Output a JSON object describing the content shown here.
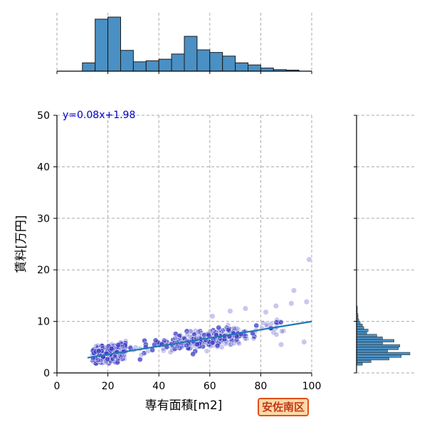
{
  "chart_data": {
    "type": "scatter",
    "xlabel": "専有面積[m2]",
    "ylabel": "賃料[万円]",
    "xlim": [
      0,
      100
    ],
    "ylim": [
      0,
      50
    ],
    "x_ticks": [
      0,
      20,
      40,
      60,
      80,
      100
    ],
    "y_ticks": [
      0,
      10,
      20,
      30,
      40,
      50
    ],
    "grid": true,
    "regression": {
      "slope": 0.08,
      "intercept": 1.98,
      "label": "y=0.08x+1.98",
      "x_range": [
        12,
        100
      ],
      "color": "#1f77b4"
    },
    "point_color": "#3b3bc4",
    "outliers": [
      {
        "x": 99,
        "y": 22
      },
      {
        "x": 93,
        "y": 16
      },
      {
        "x": 92,
        "y": 13.5
      },
      {
        "x": 98,
        "y": 13.8
      },
      {
        "x": 86,
        "y": 13
      },
      {
        "x": 74,
        "y": 12.5
      },
      {
        "x": 61,
        "y": 11
      },
      {
        "x": 68,
        "y": 12
      },
      {
        "x": 82,
        "y": 11.8
      },
      {
        "x": 88,
        "y": 5.5
      },
      {
        "x": 97,
        "y": 6
      },
      {
        "x": 84,
        "y": 9.5
      }
    ],
    "x_histogram": {
      "bin_edges": [
        10,
        15,
        20,
        25,
        30,
        35,
        40,
        45,
        50,
        55,
        60,
        65,
        70,
        75,
        80,
        85,
        90,
        95,
        100
      ],
      "counts": [
        16,
        100,
        104,
        40,
        18,
        20,
        23,
        33,
        67,
        41,
        36,
        29,
        16,
        12,
        6,
        3,
        2,
        0
      ],
      "color": "#4a90c4"
    },
    "y_histogram": {
      "bin_edges": [
        1.5,
        2,
        2.5,
        3,
        3.5,
        4,
        4.5,
        5,
        5.5,
        6,
        6.5,
        7,
        7.5,
        8,
        8.5,
        9,
        9.5,
        10,
        10.5,
        11,
        11.5,
        12,
        12.5,
        13
      ],
      "counts": [
        8,
        20,
        45,
        62,
        74,
        43,
        58,
        60,
        36,
        52,
        36,
        28,
        14,
        16,
        10,
        8,
        5,
        3,
        2,
        2,
        1,
        1,
        1
      ],
      "color": "#4a90c4"
    }
  },
  "district_label": "安佐南区"
}
